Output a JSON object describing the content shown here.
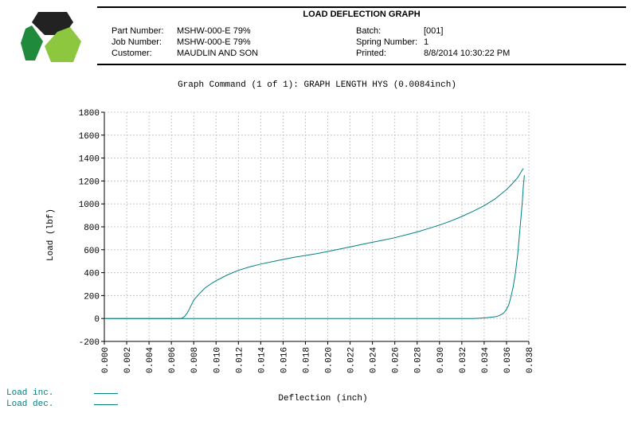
{
  "header": {
    "title": "LOAD DEFLECTION GRAPH",
    "part_number_label": "Part Number:",
    "part_number": "MSHW-000-E 79%",
    "job_number_label": "Job Number:",
    "job_number": "MSHW-000-E 79%",
    "customer_label": "Customer:",
    "customer": "MAUDLIN AND SON",
    "batch_label": "Batch:",
    "batch": "[001]",
    "spring_number_label": "Spring Number:",
    "spring_number": "1",
    "printed_label": "Printed:",
    "printed": "8/8/2014 10:30:22 PM"
  },
  "logo": {
    "colors": [
      "#1f8a3c",
      "#222222",
      "#8dc63f"
    ]
  },
  "graph_command": "Graph Command (1 of 1): GRAPH LENGTH HYS (0.0084inch)",
  "chart_data": {
    "type": "line",
    "title": "",
    "xlabel": "Deflection (inch)",
    "ylabel": "Load (lbf)",
    "xlim": [
      0,
      0.038
    ],
    "ylim": [
      -200,
      1800
    ],
    "x_ticks": [
      "0.000",
      "0.002",
      "0.004",
      "0.006",
      "0.008",
      "0.010",
      "0.012",
      "0.014",
      "0.016",
      "0.018",
      "0.020",
      "0.022",
      "0.024",
      "0.026",
      "0.028",
      "0.030",
      "0.032",
      "0.034",
      "0.036",
      "0.038"
    ],
    "y_ticks": [
      "1800",
      "1600",
      "1400",
      "1200",
      "1000",
      "800",
      "600",
      "400",
      "200",
      "0",
      "-200"
    ],
    "grid": true,
    "legend_position": "bottom-left",
    "line_color": "#008080",
    "series": [
      {
        "name": "Load inc.",
        "x": [
          0.0,
          0.0068,
          0.007,
          0.0072,
          0.0074,
          0.0076,
          0.0078,
          0.008,
          0.0085,
          0.009,
          0.0095,
          0.01,
          0.011,
          0.012,
          0.013,
          0.014,
          0.015,
          0.016,
          0.017,
          0.018,
          0.019,
          0.02,
          0.021,
          0.022,
          0.023,
          0.024,
          0.025,
          0.026,
          0.027,
          0.028,
          0.029,
          0.03,
          0.031,
          0.032,
          0.033,
          0.034,
          0.035,
          0.0355,
          0.036,
          0.0365,
          0.037,
          0.0375
        ],
        "y": [
          0,
          0,
          5,
          20,
          45,
          80,
          120,
          160,
          215,
          265,
          300,
          330,
          380,
          420,
          450,
          475,
          495,
          515,
          535,
          550,
          565,
          585,
          605,
          625,
          645,
          665,
          685,
          705,
          730,
          755,
          785,
          815,
          850,
          890,
          935,
          985,
          1045,
          1085,
          1125,
          1175,
          1230,
          1310
        ]
      },
      {
        "name": "Load dec.",
        "x": [
          0.0376,
          0.0375,
          0.0374,
          0.0372,
          0.037,
          0.0368,
          0.0366,
          0.0364,
          0.0362,
          0.036,
          0.0358,
          0.0356,
          0.0354,
          0.0352,
          0.035,
          0.0345,
          0.034,
          0.0335,
          0.033,
          0.032,
          0.03,
          0.025,
          0.02,
          0.015,
          0.01,
          0.005,
          0.0
        ],
        "y": [
          1250,
          1150,
          1000,
          780,
          560,
          400,
          280,
          190,
          120,
          80,
          52,
          38,
          28,
          20,
          15,
          10,
          5,
          2,
          0,
          0,
          0,
          0,
          0,
          0,
          0,
          0,
          0
        ]
      }
    ]
  }
}
